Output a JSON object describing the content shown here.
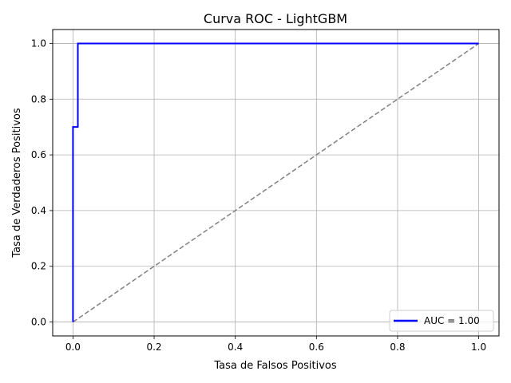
{
  "chart_data": {
    "type": "line",
    "title": "Curva ROC - LightGBM",
    "xlabel": "Tasa de Falsos Positivos",
    "ylabel": "Tasa de Verdaderos Positivos",
    "xlim": [
      -0.05,
      1.05
    ],
    "ylim": [
      -0.05,
      1.05
    ],
    "xticks": [
      0.0,
      0.2,
      0.4,
      0.6,
      0.8,
      1.0
    ],
    "yticks": [
      0.0,
      0.2,
      0.4,
      0.6,
      0.8,
      1.0
    ],
    "xtick_labels": [
      "0.0",
      "0.2",
      "0.4",
      "0.6",
      "0.8",
      "1.0"
    ],
    "ytick_labels": [
      "0.0",
      "0.2",
      "0.4",
      "0.6",
      "0.8",
      "1.0"
    ],
    "grid": true,
    "legend": {
      "placement": "lower-right"
    },
    "series": [
      {
        "name": "AUC = 1.00",
        "color": "#0000ff",
        "style": "solid",
        "x": [
          0.0,
          0.0,
          0.012,
          0.012,
          1.0
        ],
        "y": [
          0.0,
          0.7,
          0.7,
          1.0,
          1.0
        ]
      },
      {
        "color": "#808080",
        "style": "dashed",
        "x": [
          0.0,
          1.0
        ],
        "y": [
          0.0,
          1.0
        ]
      }
    ]
  }
}
